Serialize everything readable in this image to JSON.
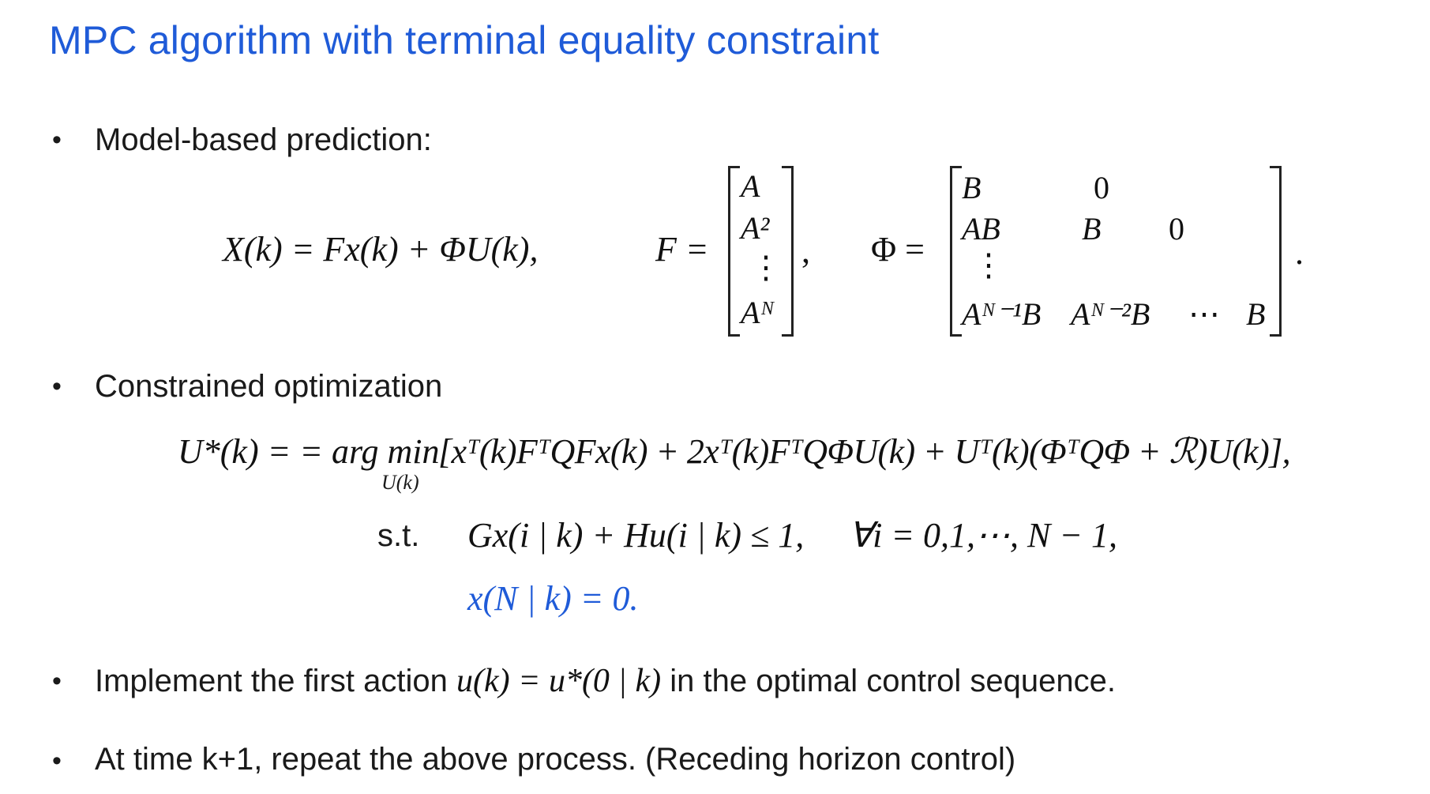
{
  "slide": {
    "title": "MPC algorithm with terminal equality constraint",
    "bullets": [
      "Model-based prediction:",
      "Constrained optimization",
      "Implement the first action",
      "in the optimal control sequence.",
      "At time k+1, repeat the above process. (Receding horizon control)"
    ],
    "bullet_symbol": "•"
  },
  "equations": {
    "prediction": "X(k) = Fx(k) + ΦU(k),",
    "F_lhs": "F =",
    "F_rows": [
      "A",
      "A²",
      "⋮",
      "Aᴺ"
    ],
    "F_sep": ",",
    "Phi_lhs": "Φ =",
    "Phi_rows": [
      [
        "B",
        "0",
        "",
        ""
      ],
      [
        "AB",
        "B",
        "0",
        ""
      ],
      [
        "⋮",
        "",
        "",
        ""
      ],
      [
        "Aᴺ⁻¹B",
        "Aᴺ⁻²B",
        "⋯",
        "B"
      ]
    ],
    "Phi_end": ".",
    "opt_lhs": "U*(k) = = arg min",
    "opt_sub": "U(k)",
    "opt_body": "[xᵀ(k)FᵀQFx(k) + 2xᵀ(k)FᵀQΦU(k) + Uᵀ(k)(ΦᵀQΦ + ℛ)U(k)],",
    "st_label": "s.t.",
    "constraint1": "Gx(i | k) + Hu(i | k) ≤ 1,",
    "constraint1_quant": "∀i = 0,1,⋯, N − 1,",
    "constraint2": "x(N | k) = 0.",
    "first_action": "u(k) = u*(0 | k)"
  },
  "colors": {
    "title": "#1f5bd8",
    "terminal_constraint": "#1f5bd8",
    "text": "#1a1a1a"
  }
}
